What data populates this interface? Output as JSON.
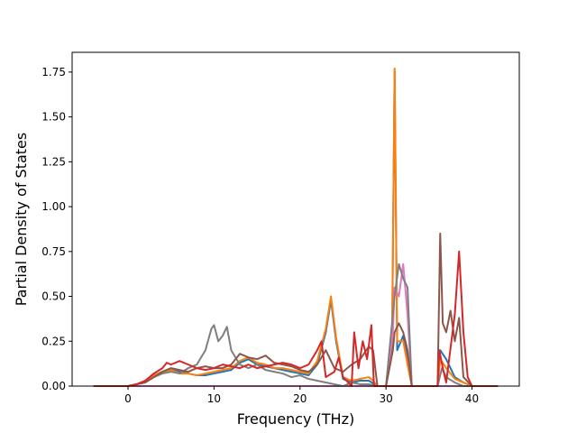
{
  "chart_data": {
    "type": "line",
    "title": "",
    "xlabel": "Frequency (THz)",
    "ylabel": "Partial Density of States",
    "xlim": [
      -6.5,
      45.5
    ],
    "ylim": [
      0,
      1.86
    ],
    "xticks": [
      0,
      10,
      20,
      30,
      40
    ],
    "yticks": [
      0.0,
      0.25,
      0.5,
      0.75,
      1.0,
      1.25,
      1.5,
      1.75
    ],
    "ytick_labels": [
      "0.00",
      "0.25",
      "0.50",
      "0.75",
      "1.00",
      "1.25",
      "1.50",
      "1.75"
    ],
    "grid": false,
    "legend": "none",
    "series": [
      {
        "color": "#1f77b4",
        "points": [
          [
            -4,
            0
          ],
          [
            0,
            0
          ],
          [
            1,
            0.01
          ],
          [
            2,
            0.03
          ],
          [
            3,
            0.06
          ],
          [
            4,
            0.08
          ],
          [
            5,
            0.09
          ],
          [
            6,
            0.08
          ],
          [
            7,
            0.07
          ],
          [
            8,
            0.06
          ],
          [
            9,
            0.06
          ],
          [
            10,
            0.07
          ],
          [
            11,
            0.08
          ],
          [
            12,
            0.09
          ],
          [
            13,
            0.13
          ],
          [
            14,
            0.15
          ],
          [
            15,
            0.12
          ],
          [
            16,
            0.11
          ],
          [
            17,
            0.1
          ],
          [
            18,
            0.09
          ],
          [
            19,
            0.08
          ],
          [
            20,
            0.07
          ],
          [
            21,
            0.06
          ],
          [
            22,
            0.12
          ],
          [
            23,
            0.3
          ],
          [
            23.6,
            0.48
          ],
          [
            24.2,
            0.25
          ],
          [
            25,
            0.04
          ],
          [
            26,
            0.02
          ],
          [
            27,
            0.03
          ],
          [
            28,
            0.03
          ],
          [
            29,
            0
          ],
          [
            30,
            0
          ],
          [
            30.7,
            0.2
          ],
          [
            31,
            1.76
          ],
          [
            31.3,
            0.2
          ],
          [
            32,
            0.28
          ],
          [
            32.5,
            0.15
          ],
          [
            33,
            0
          ],
          [
            36,
            0
          ],
          [
            36.3,
            0.2
          ],
          [
            37,
            0.15
          ],
          [
            38,
            0.05
          ],
          [
            39,
            0.02
          ],
          [
            40,
            0
          ],
          [
            43,
            0
          ]
        ]
      },
      {
        "color": "#ff7f0e",
        "points": [
          [
            -4,
            0
          ],
          [
            0,
            0
          ],
          [
            1,
            0.01
          ],
          [
            2,
            0.03
          ],
          [
            3,
            0.06
          ],
          [
            4,
            0.08
          ],
          [
            5,
            0.09
          ],
          [
            6,
            0.07
          ],
          [
            7,
            0.07
          ],
          [
            8,
            0.06
          ],
          [
            9,
            0.07
          ],
          [
            10,
            0.08
          ],
          [
            11,
            0.09
          ],
          [
            12,
            0.1
          ],
          [
            13,
            0.14
          ],
          [
            14,
            0.16
          ],
          [
            15,
            0.13
          ],
          [
            16,
            0.12
          ],
          [
            17,
            0.1
          ],
          [
            18,
            0.1
          ],
          [
            19,
            0.09
          ],
          [
            20,
            0.08
          ],
          [
            21,
            0.07
          ],
          [
            22,
            0.14
          ],
          [
            23,
            0.32
          ],
          [
            23.6,
            0.5
          ],
          [
            24.2,
            0.27
          ],
          [
            25,
            0.05
          ],
          [
            26,
            0.03
          ],
          [
            27,
            0.04
          ],
          [
            28,
            0.05
          ],
          [
            28.5,
            0.03
          ],
          [
            29,
            0
          ],
          [
            30,
            0
          ],
          [
            30.7,
            0.25
          ],
          [
            31,
            1.77
          ],
          [
            31.3,
            0.25
          ],
          [
            32,
            0.25
          ],
          [
            32.5,
            0.12
          ],
          [
            33,
            0
          ],
          [
            36,
            0
          ],
          [
            36.3,
            0.15
          ],
          [
            37,
            0.1
          ],
          [
            38,
            0.04
          ],
          [
            39,
            0.02
          ],
          [
            40,
            0
          ],
          [
            43,
            0
          ]
        ]
      },
      {
        "color": "#e377c2",
        "points": [
          [
            -4,
            0
          ],
          [
            0,
            0
          ],
          [
            30,
            0
          ],
          [
            30.8,
            0.3
          ],
          [
            31,
            0.55
          ],
          [
            31.5,
            0.5
          ],
          [
            32,
            0.68
          ],
          [
            32.5,
            0.4
          ],
          [
            33,
            0
          ],
          [
            43,
            0
          ]
        ]
      },
      {
        "color": "#7f7f7f",
        "points": [
          [
            -4,
            0
          ],
          [
            0,
            0
          ],
          [
            1,
            0.01
          ],
          [
            2,
            0.02
          ],
          [
            3,
            0.05
          ],
          [
            4,
            0.07
          ],
          [
            5,
            0.08
          ],
          [
            6,
            0.07
          ],
          [
            7,
            0.1
          ],
          [
            8,
            0.12
          ],
          [
            9,
            0.2
          ],
          [
            9.7,
            0.32
          ],
          [
            10,
            0.34
          ],
          [
            10.5,
            0.25
          ],
          [
            11,
            0.28
          ],
          [
            11.5,
            0.33
          ],
          [
            12,
            0.2
          ],
          [
            13,
            0.12
          ],
          [
            14,
            0.1
          ],
          [
            15,
            0.12
          ],
          [
            16,
            0.09
          ],
          [
            17,
            0.08
          ],
          [
            18,
            0.07
          ],
          [
            19,
            0.05
          ],
          [
            20,
            0.06
          ],
          [
            21,
            0.04
          ],
          [
            22,
            0.03
          ],
          [
            23,
            0.02
          ],
          [
            24,
            0.01
          ],
          [
            25,
            0
          ],
          [
            26,
            0.02
          ],
          [
            27,
            0.01
          ],
          [
            28,
            0.01
          ],
          [
            29,
            0
          ],
          [
            30,
            0
          ],
          [
            30.8,
            0.4
          ],
          [
            31,
            0.5
          ],
          [
            31.5,
            0.68
          ],
          [
            32,
            0.6
          ],
          [
            32.5,
            0.55
          ],
          [
            33,
            0
          ],
          [
            36,
            0
          ],
          [
            36.5,
            0.1
          ],
          [
            37,
            0.05
          ],
          [
            38,
            0.02
          ],
          [
            39,
            0
          ],
          [
            43,
            0
          ]
        ]
      },
      {
        "color": "#8c564b",
        "points": [
          [
            -4,
            0
          ],
          [
            0,
            0
          ],
          [
            1,
            0.01
          ],
          [
            2,
            0.02
          ],
          [
            3,
            0.05
          ],
          [
            4,
            0.08
          ],
          [
            5,
            0.1
          ],
          [
            6,
            0.09
          ],
          [
            7,
            0.08
          ],
          [
            8,
            0.1
          ],
          [
            9,
            0.11
          ],
          [
            10,
            0.1
          ],
          [
            11,
            0.1
          ],
          [
            12,
            0.12
          ],
          [
            13,
            0.18
          ],
          [
            14,
            0.16
          ],
          [
            15,
            0.15
          ],
          [
            16,
            0.17
          ],
          [
            17,
            0.13
          ],
          [
            18,
            0.12
          ],
          [
            19,
            0.11
          ],
          [
            20,
            0.09
          ],
          [
            21,
            0.08
          ],
          [
            22,
            0.12
          ],
          [
            23,
            0.2
          ],
          [
            24,
            0.1
          ],
          [
            25,
            0.08
          ],
          [
            26,
            0.12
          ],
          [
            27,
            0.15
          ],
          [
            28,
            0.22
          ],
          [
            28.5,
            0.2
          ],
          [
            29,
            0
          ],
          [
            30,
            0
          ],
          [
            30.8,
            0.2
          ],
          [
            31,
            0.3
          ],
          [
            31.5,
            0.35
          ],
          [
            32,
            0.3
          ],
          [
            32.5,
            0.2
          ],
          [
            33,
            0
          ],
          [
            36,
            0
          ],
          [
            36.3,
            0.85
          ],
          [
            36.6,
            0.35
          ],
          [
            37,
            0.3
          ],
          [
            37.5,
            0.42
          ],
          [
            38,
            0.25
          ],
          [
            38.5,
            0.38
          ],
          [
            39,
            0.05
          ],
          [
            40,
            0
          ],
          [
            43,
            0
          ]
        ]
      },
      {
        "color": "#d62728",
        "points": [
          [
            -4,
            0
          ],
          [
            0,
            0
          ],
          [
            1,
            0.01
          ],
          [
            2,
            0.03
          ],
          [
            3,
            0.07
          ],
          [
            4,
            0.1
          ],
          [
            4.5,
            0.13
          ],
          [
            5,
            0.12
          ],
          [
            6,
            0.14
          ],
          [
            7,
            0.12
          ],
          [
            8,
            0.1
          ],
          [
            9,
            0.09
          ],
          [
            10,
            0.1
          ],
          [
            11,
            0.12
          ],
          [
            12,
            0.11
          ],
          [
            13,
            0.1
          ],
          [
            14,
            0.12
          ],
          [
            15,
            0.1
          ],
          [
            16,
            0.11
          ],
          [
            17,
            0.12
          ],
          [
            18,
            0.13
          ],
          [
            19,
            0.12
          ],
          [
            20,
            0.1
          ],
          [
            21,
            0.12
          ],
          [
            22,
            0.2
          ],
          [
            22.5,
            0.25
          ],
          [
            23,
            0.05
          ],
          [
            24,
            0.08
          ],
          [
            24.5,
            0.16
          ],
          [
            25,
            0.05
          ],
          [
            26,
            0
          ],
          [
            26.3,
            0.3
          ],
          [
            26.8,
            0.1
          ],
          [
            27.3,
            0.25
          ],
          [
            27.8,
            0.15
          ],
          [
            28.3,
            0.34
          ],
          [
            28.6,
            0
          ],
          [
            30,
            0
          ],
          [
            36,
            0
          ],
          [
            36.2,
            0.2
          ],
          [
            36.6,
            0.1
          ],
          [
            37,
            0.02
          ],
          [
            38,
            0.4
          ],
          [
            38.5,
            0.75
          ],
          [
            39,
            0.3
          ],
          [
            39.5,
            0.05
          ],
          [
            40,
            0
          ],
          [
            43,
            0
          ]
        ]
      }
    ]
  }
}
